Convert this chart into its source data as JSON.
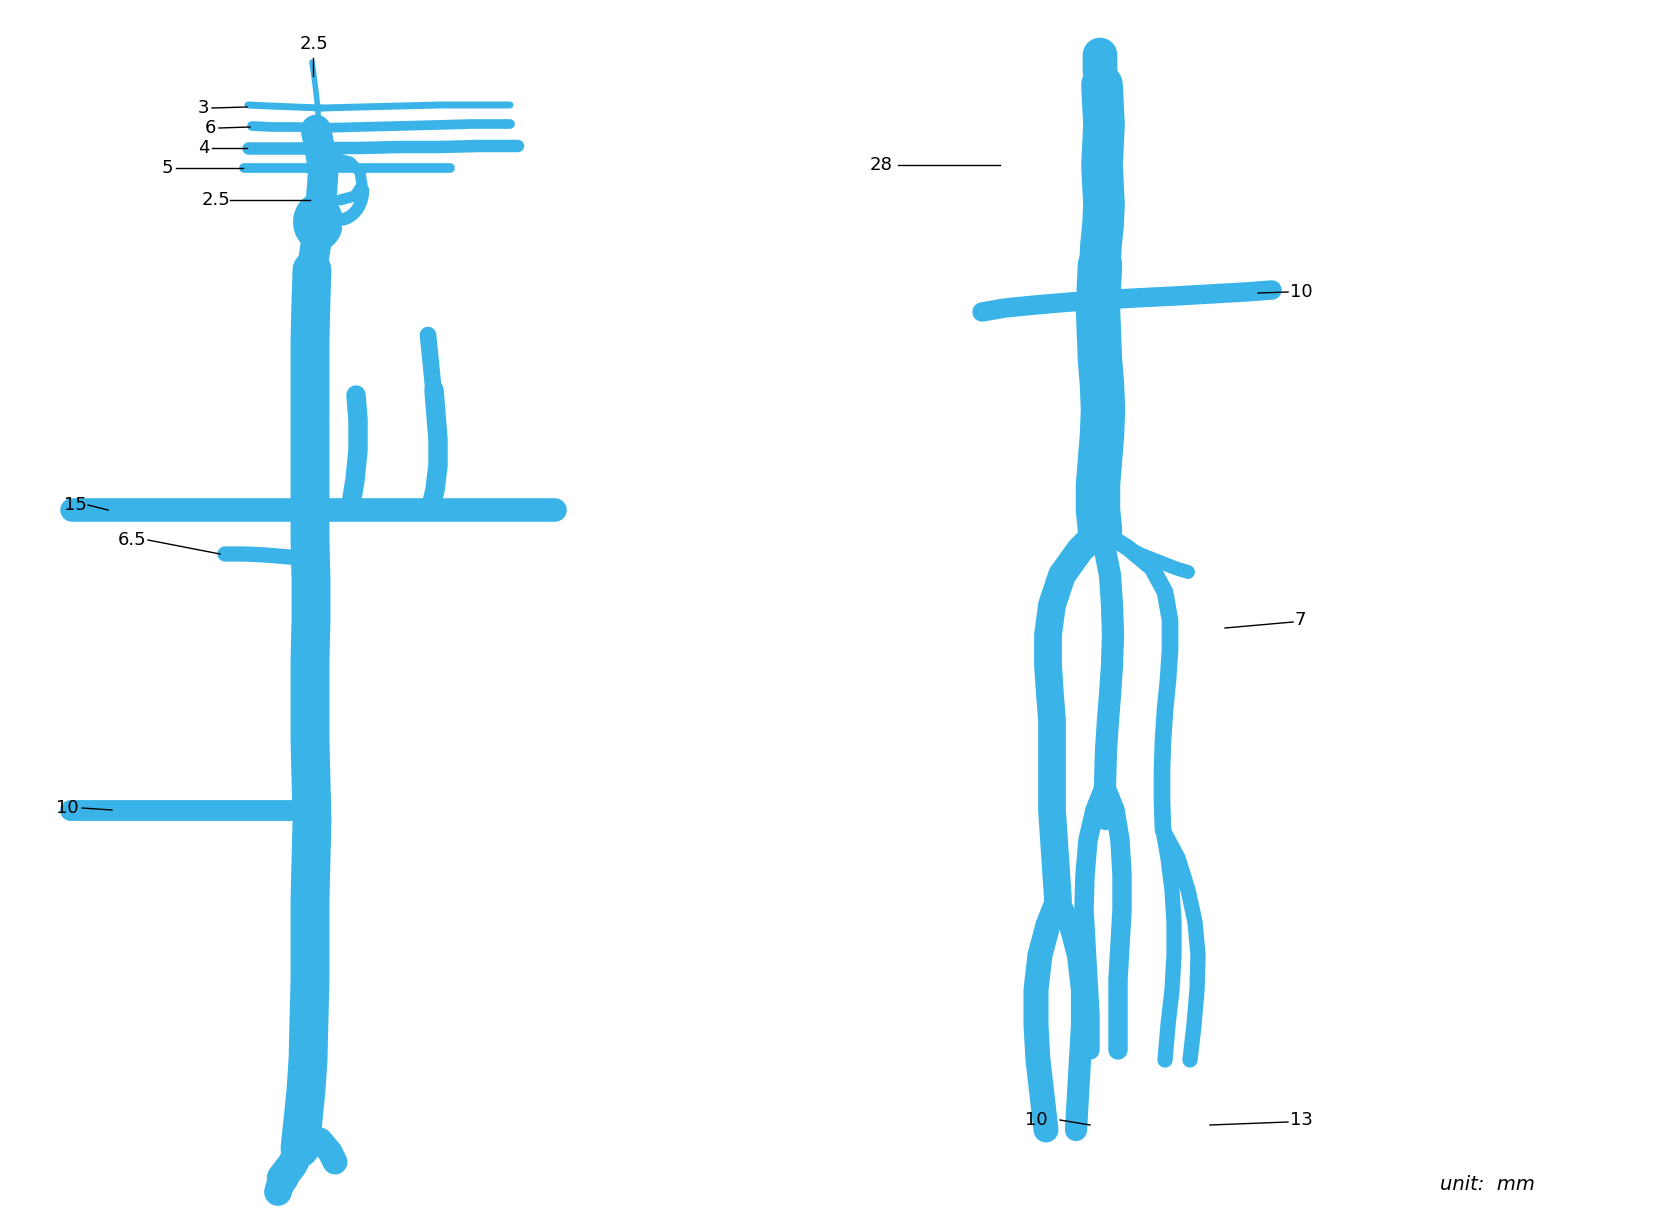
{
  "bg_color": "#ffffff",
  "vc": "#3ab4e8",
  "fs": 13,
  "lc": "#000000",
  "figsize": [
    16.64,
    12.3
  ],
  "dpi": 100,
  "unit_text": "unit:  mm"
}
